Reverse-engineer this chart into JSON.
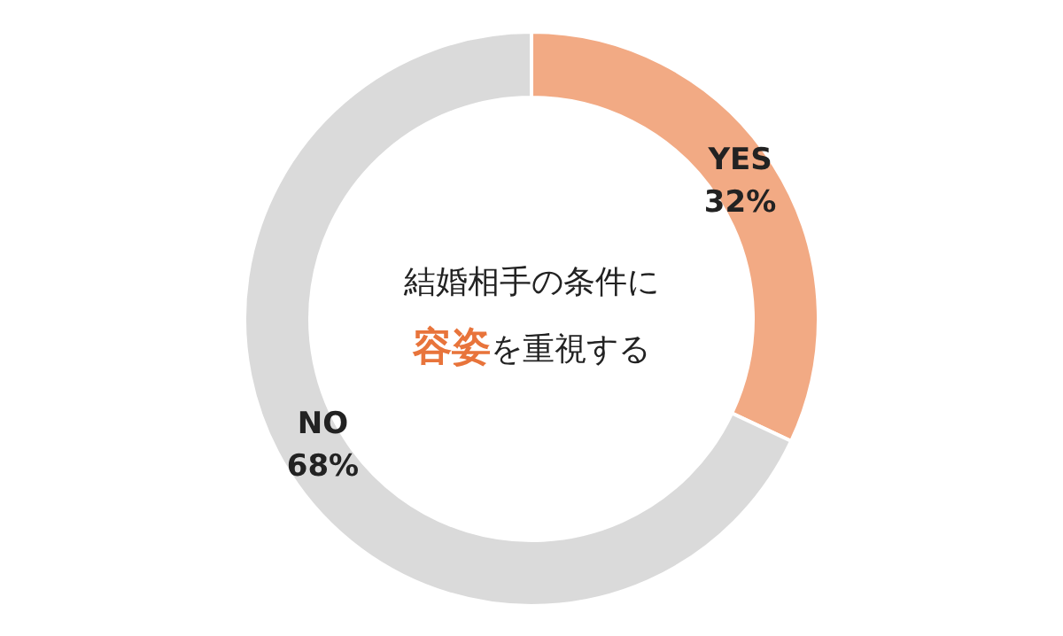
{
  "chart_data": {
    "type": "donut",
    "categories": [
      "YES",
      "NO"
    ],
    "values": [
      32,
      68
    ],
    "colors": [
      "#f2aa84",
      "#dadada"
    ],
    "value_labels": [
      "32%",
      "68%"
    ],
    "annotations": [
      "結婚相手の条件に",
      "容姿",
      "を重視する"
    ]
  }
}
